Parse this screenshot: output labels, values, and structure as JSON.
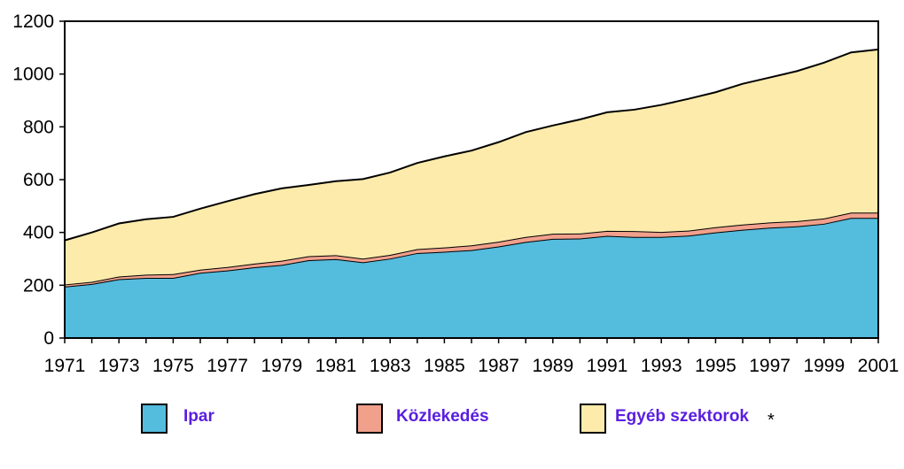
{
  "colors": {
    "ipar": "#54bcdd",
    "kozlekedes": "#f1a08c",
    "egyeb": "#fdebab",
    "outline": "#000000",
    "legend_text": "#5a1ee0"
  },
  "legend": {
    "items": [
      {
        "label": "Ipar",
        "series": 0
      },
      {
        "label": "Közlekedés",
        "series": 1
      },
      {
        "label": "Egyéb szektorok",
        "series": 2
      }
    ],
    "note": "*"
  },
  "chart_data": {
    "type": "area",
    "stacked": true,
    "title": "",
    "xlabel": "",
    "ylabel": "",
    "x": [
      1971,
      1972,
      1973,
      1974,
      1975,
      1976,
      1977,
      1978,
      1979,
      1980,
      1981,
      1982,
      1983,
      1984,
      1985,
      1986,
      1987,
      1988,
      1989,
      1990,
      1991,
      1992,
      1993,
      1994,
      1995,
      1996,
      1997,
      1998,
      1999,
      2000,
      2001
    ],
    "x_tick_labels": [
      "1971",
      "1973",
      "1975",
      "1977",
      "1979",
      "1981",
      "1983",
      "1985",
      "1987",
      "1989",
      "1991",
      "1993",
      "1995",
      "1997",
      "1999",
      "2001"
    ],
    "y_tick_labels": [
      "0",
      "200",
      "400",
      "600",
      "800",
      "1000",
      "1200"
    ],
    "ylim": [
      0,
      1200
    ],
    "xlim": [
      1971,
      2001
    ],
    "grid": false,
    "legend_position": "bottom",
    "series": [
      {
        "name": "Ipar",
        "values": [
          195,
          205,
          223,
          228,
          228,
          247,
          256,
          268,
          277,
          295,
          299,
          287,
          301,
          322,
          327,
          333,
          347,
          364,
          376,
          377,
          387,
          383,
          383,
          388,
          400,
          410,
          418,
          423,
          433,
          455,
          455
        ]
      },
      {
        "name": "Közlekedés",
        "values": [
          8,
          8,
          10,
          12,
          14,
          12,
          13,
          14,
          16,
          15,
          15,
          14,
          14,
          15,
          16,
          18,
          18,
          19,
          19,
          19,
          19,
          22,
          19,
          19,
          20,
          20,
          20,
          20,
          20,
          20,
          20
        ]
      },
      {
        "name": "Egyéb szektorok",
        "values": [
          167,
          187,
          201,
          210,
          217,
          231,
          249,
          263,
          274,
          270,
          280,
          301,
          312,
          326,
          345,
          359,
          377,
          397,
          410,
          432,
          449,
          460,
          481,
          499,
          511,
          533,
          549,
          568,
          590,
          607,
          618
        ]
      }
    ]
  }
}
